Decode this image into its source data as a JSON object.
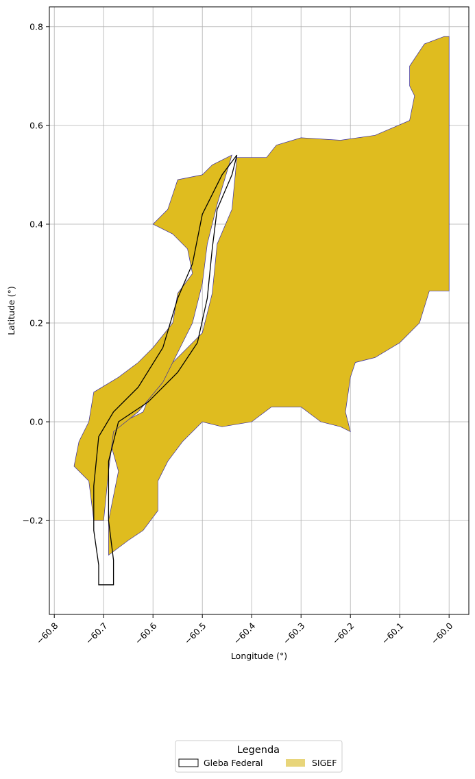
{
  "chart_data": {
    "type": "map",
    "xlabel": "Longitude (°)",
    "ylabel": "Latitude (°)",
    "xlim": [
      -60.81,
      -59.96
    ],
    "ylim": [
      -0.39,
      0.84
    ],
    "x_ticks": [
      -60.8,
      -60.7,
      -60.6,
      -60.5,
      -60.4,
      -60.3,
      -60.2,
      -60.1,
      -60.0
    ],
    "x_tick_labels": [
      "−60.8",
      "−60.7",
      "−60.6",
      "−60.5",
      "−60.4",
      "−60.3",
      "−60.2",
      "−60.1",
      "−60.0"
    ],
    "y_ticks": [
      -0.2,
      0.0,
      0.2,
      0.4,
      0.6,
      0.8
    ],
    "y_tick_labels": [
      "−0.2",
      "0.0",
      "0.2",
      "0.4",
      "0.6",
      "0.8"
    ],
    "grid": true,
    "legend": {
      "title": "Legenda",
      "placement": "bottom-center",
      "entries": [
        {
          "label": "Gleba Federal",
          "style": "outline",
          "color": "#000000"
        },
        {
          "label": "SIGEF",
          "style": "fill",
          "color": "#e8d57a"
        }
      ]
    },
    "colors": {
      "sigef_fill": "#dfbc1f",
      "sigef_edge": "#3b2fa0",
      "gleba_edge": "#000000"
    },
    "layers": {
      "sigef_main": [
        [
          -60.43,
          0.535
        ],
        [
          -60.37,
          0.535
        ],
        [
          -60.35,
          0.56
        ],
        [
          -60.3,
          0.575
        ],
        [
          -60.22,
          0.57
        ],
        [
          -60.15,
          0.58
        ],
        [
          -60.08,
          0.61
        ],
        [
          -60.07,
          0.66
        ],
        [
          -60.08,
          0.68
        ],
        [
          -60.08,
          0.72
        ],
        [
          -60.05,
          0.765
        ],
        [
          -60.01,
          0.78
        ],
        [
          -60.0,
          0.78
        ],
        [
          -60.0,
          0.265
        ],
        [
          -60.04,
          0.265
        ],
        [
          -60.06,
          0.2
        ],
        [
          -60.1,
          0.16
        ],
        [
          -60.15,
          0.13
        ],
        [
          -60.19,
          0.12
        ],
        [
          -60.2,
          0.09
        ],
        [
          -60.21,
          0.02
        ],
        [
          -60.2,
          -0.02
        ],
        [
          -60.22,
          -0.01
        ],
        [
          -60.26,
          0.0
        ],
        [
          -60.3,
          0.03
        ],
        [
          -60.36,
          0.03
        ],
        [
          -60.4,
          0.0
        ],
        [
          -60.46,
          -0.01
        ],
        [
          -60.5,
          0.0
        ],
        [
          -60.54,
          -0.04
        ],
        [
          -60.57,
          -0.08
        ],
        [
          -60.59,
          -0.12
        ],
        [
          -60.59,
          -0.18
        ],
        [
          -60.62,
          -0.22
        ],
        [
          -60.65,
          -0.24
        ],
        [
          -60.69,
          -0.27
        ],
        [
          -60.69,
          -0.2
        ],
        [
          -60.67,
          -0.1
        ],
        [
          -60.69,
          -0.03
        ],
        [
          -60.66,
          0.0
        ],
        [
          -60.62,
          0.02
        ],
        [
          -60.6,
          0.07
        ],
        [
          -60.56,
          0.12
        ],
        [
          -60.5,
          0.18
        ],
        [
          -60.48,
          0.26
        ],
        [
          -60.47,
          0.36
        ],
        [
          -60.44,
          0.43
        ]
      ],
      "sigef_west": [
        [
          -60.44,
          0.54
        ],
        [
          -60.48,
          0.52
        ],
        [
          -60.5,
          0.5
        ],
        [
          -60.55,
          0.49
        ],
        [
          -60.57,
          0.43
        ],
        [
          -60.6,
          0.4
        ],
        [
          -60.56,
          0.38
        ],
        [
          -60.53,
          0.35
        ],
        [
          -60.52,
          0.3
        ],
        [
          -60.55,
          0.26
        ],
        [
          -60.56,
          0.2
        ],
        [
          -60.6,
          0.15
        ],
        [
          -60.63,
          0.12
        ],
        [
          -60.67,
          0.09
        ],
        [
          -60.72,
          0.06
        ],
        [
          -60.73,
          0.0
        ],
        [
          -60.75,
          -0.04
        ],
        [
          -60.76,
          -0.09
        ],
        [
          -60.73,
          -0.12
        ],
        [
          -60.72,
          -0.2
        ],
        [
          -60.7,
          -0.2
        ],
        [
          -60.69,
          -0.1
        ],
        [
          -60.68,
          -0.02
        ],
        [
          -60.63,
          0.02
        ],
        [
          -60.58,
          0.08
        ],
        [
          -60.55,
          0.14
        ],
        [
          -60.52,
          0.2
        ],
        [
          -60.5,
          0.28
        ],
        [
          -60.49,
          0.36
        ],
        [
          -60.47,
          0.44
        ]
      ],
      "gleba_outline": [
        [
          -60.43,
          0.54
        ],
        [
          -60.44,
          0.5
        ],
        [
          -60.47,
          0.43
        ],
        [
          -60.48,
          0.35
        ],
        [
          -60.49,
          0.25
        ],
        [
          -60.51,
          0.16
        ],
        [
          -60.55,
          0.1
        ],
        [
          -60.61,
          0.04
        ],
        [
          -60.67,
          0.0
        ],
        [
          -60.69,
          -0.08
        ],
        [
          -60.69,
          -0.2
        ],
        [
          -60.68,
          -0.28
        ],
        [
          -60.68,
          -0.33
        ],
        [
          -60.71,
          -0.33
        ],
        [
          -60.71,
          -0.29
        ],
        [
          -60.72,
          -0.22
        ],
        [
          -60.72,
          -0.13
        ],
        [
          -60.71,
          -0.03
        ],
        [
          -60.68,
          0.02
        ],
        [
          -60.63,
          0.07
        ],
        [
          -60.58,
          0.15
        ],
        [
          -60.55,
          0.25
        ],
        [
          -60.52,
          0.32
        ],
        [
          -60.5,
          0.42
        ],
        [
          -60.46,
          0.5
        ]
      ]
    }
  }
}
